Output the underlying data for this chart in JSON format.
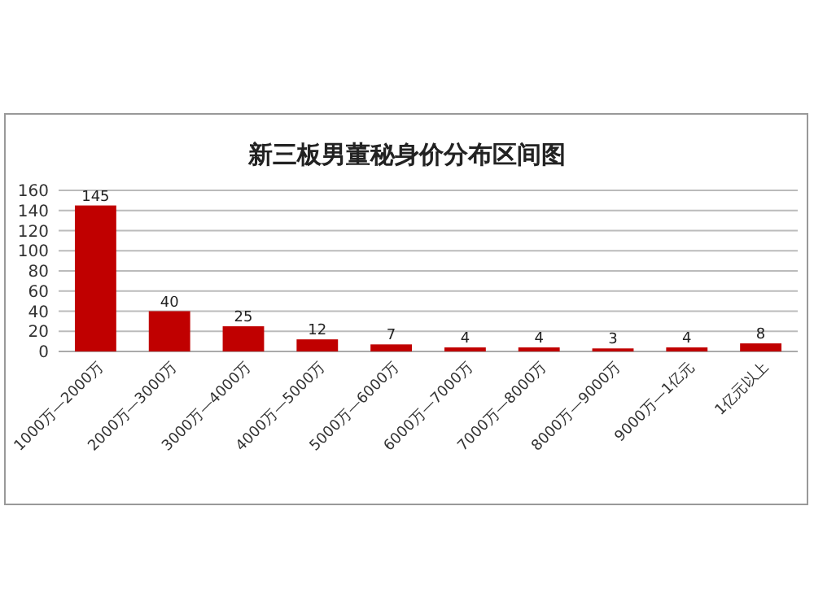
{
  "chart_data": {
    "type": "bar",
    "title": "新三板男董秘身价分布区间图",
    "categories": [
      "1000万—2000万",
      "2000万—3000万",
      "3000万—4000万",
      "4000万—5000万",
      "5000万—6000万",
      "6000万—7000万",
      "7000万—8000万",
      "8000万—9000万",
      "9000万—1亿元",
      "1亿元以上"
    ],
    "values": [
      145,
      40,
      25,
      12,
      7,
      4,
      4,
      3,
      4,
      8
    ],
    "color": "#c00000",
    "ylim": [
      0,
      160
    ],
    "yticks": [
      0,
      20,
      40,
      60,
      80,
      100,
      120,
      140,
      160
    ],
    "grid": "y",
    "data_labels": true
  }
}
